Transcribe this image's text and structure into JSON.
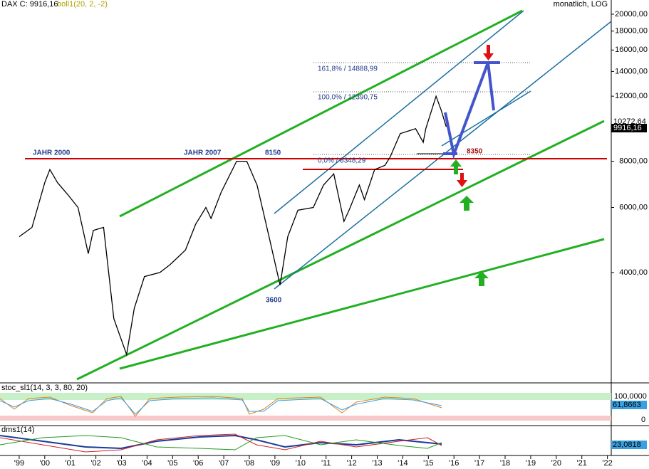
{
  "chart_data": {
    "type": "line",
    "title": "DAX C: 9916,16",
    "subtitle": "boll1(20, 2, -2)",
    "scale_note": "monatlich, LOG",
    "log_y": true,
    "x": [
      1999.0,
      1999.5,
      2000.0,
      2000.2,
      2000.5,
      2000.9,
      2001.3,
      2001.7,
      2001.9,
      2002.3,
      2002.7,
      2003.2,
      2003.5,
      2003.9,
      2004.5,
      2004.9,
      2005.5,
      2005.9,
      2006.3,
      2006.5,
      2006.9,
      2007.5,
      2007.9,
      2008.3,
      2008.8,
      2009.2,
      2009.5,
      2009.9,
      2010.5,
      2010.9,
      2011.3,
      2011.7,
      2011.9,
      2012.3,
      2012.5,
      2012.9,
      2013.3,
      2013.5,
      2013.9,
      2014.5,
      2014.8,
      2014.9,
      2015.3,
      2015.5,
      2015.7
    ],
    "series": [
      {
        "name": "DAX",
        "color": "#000000",
        "values": [
          5000,
          5300,
          7000,
          7600,
          7000,
          6500,
          6000,
          4500,
          5200,
          5300,
          3000,
          2400,
          3200,
          3900,
          4000,
          4200,
          4600,
          5400,
          6000,
          5600,
          6600,
          8000,
          8000,
          6900,
          4900,
          3700,
          5000,
          5900,
          6000,
          6900,
          7400,
          5500,
          5900,
          6900,
          6300,
          7600,
          7800,
          8200,
          9500,
          9800,
          9000,
          9800,
          12000,
          11000,
          9916
        ]
      }
    ],
    "xlim": [
      1998.25,
      2022.15
    ],
    "xticks": [
      {
        "value": 1999,
        "label": "'99"
      },
      {
        "value": 2000,
        "label": "'00"
      },
      {
        "value": 2001,
        "label": "'01"
      },
      {
        "value": 2002,
        "label": "'02"
      },
      {
        "value": 2003,
        "label": "'03"
      },
      {
        "value": 2004,
        "label": "'04"
      },
      {
        "value": 2005,
        "label": "'05"
      },
      {
        "value": 2006,
        "label": "'06"
      },
      {
        "value": 2007,
        "label": "'07"
      },
      {
        "value": 2008,
        "label": "'08"
      },
      {
        "value": 2009,
        "label": "'09"
      },
      {
        "value": 2010,
        "label": "'10"
      },
      {
        "value": 2011,
        "label": "'11"
      },
      {
        "value": 2012,
        "label": "'12"
      },
      {
        "value": 2013,
        "label": "'13"
      },
      {
        "value": 2014,
        "label": "'14"
      },
      {
        "value": 2015,
        "label": "'15"
      },
      {
        "value": 2016,
        "label": "'16"
      },
      {
        "value": 2017,
        "label": "'17"
      },
      {
        "value": 2018,
        "label": "'18"
      },
      {
        "value": 2019,
        "label": "'19"
      },
      {
        "value": 2020,
        "label": "'20"
      },
      {
        "value": 2021,
        "label": "'21"
      },
      {
        "value": 2022,
        "label": "'22"
      }
    ],
    "ylim": [
      2020,
      21850
    ],
    "yticks": [
      {
        "value": 4000,
        "label": "4000,00"
      },
      {
        "value": 6000,
        "label": "6000,00"
      },
      {
        "value": 8000,
        "label": "8000,00"
      },
      {
        "value": 12000,
        "label": "12000,00"
      },
      {
        "value": 14000,
        "label": "14000,00"
      },
      {
        "value": 16000,
        "label": "16000,00"
      },
      {
        "value": 18000,
        "label": "18000,00"
      },
      {
        "value": 20000,
        "label": "20000,00"
      }
    ],
    "price_labels": [
      "10272,64",
      "9916,16"
    ],
    "annotations": [
      "JAHR 2000",
      "JAHR 2007",
      "8150",
      "3600",
      "8350",
      "161,8% / 14888,99",
      "100,0% / 12390,75",
      "0,0% / 8348,29"
    ],
    "stoc_panel": {
      "title": "stoc_sl1(14, 3, 3, 80, 20)",
      "labels": [
        "100,0000",
        "61,8663",
        "0"
      ]
    },
    "dms_panel": {
      "title": "dms1(14)",
      "labels": [
        "23,0818"
      ]
    }
  }
}
